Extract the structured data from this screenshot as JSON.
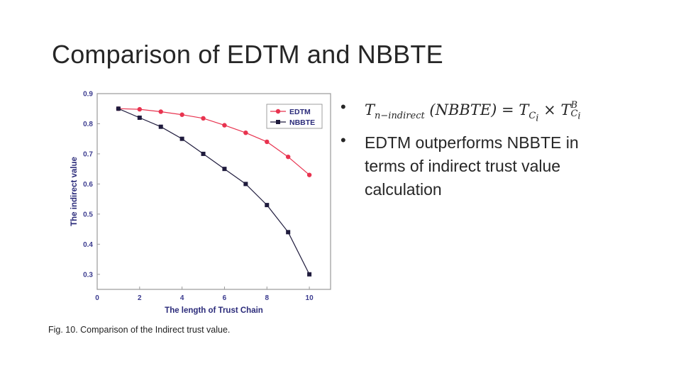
{
  "slide": {
    "title": "Comparison of EDTM and NBBTE",
    "caption": "Fig. 10. Comparison of the Indirect trust value."
  },
  "bullets": [
    {
      "type": "formula",
      "lhs_base": "T",
      "lhs_sub": "n−indirect",
      "lhs_arg": "(NBBTE) =",
      "rhs1_base": "T",
      "rhs1_sub": "C",
      "rhs1_subsub": "i",
      "times": "×",
      "rhs2_base": "T",
      "rhs2_sup": "B",
      "rhs2_sub": "C",
      "rhs2_subsub": "i"
    },
    {
      "type": "text",
      "text": "EDTM outperforms NBBTE in terms of indirect trust value calculation"
    }
  ],
  "chart_data": {
    "type": "line",
    "xlabel": "The length of Trust Chain",
    "ylabel": "The indirect value",
    "xlim": [
      0,
      11
    ],
    "ylim": [
      0.25,
      0.9
    ],
    "x_ticks": [
      0,
      2,
      4,
      6,
      8,
      10
    ],
    "y_ticks": [
      0.3,
      0.4,
      0.5,
      0.6,
      0.7,
      0.8,
      0.9
    ],
    "legend_position": "top-right",
    "series": [
      {
        "name": "EDTM",
        "color": "#e8334f",
        "marker": "circle",
        "x": [
          1,
          2,
          3,
          4,
          5,
          6,
          7,
          8,
          9,
          10
        ],
        "y": [
          0.85,
          0.848,
          0.84,
          0.83,
          0.818,
          0.795,
          0.77,
          0.74,
          0.69,
          0.63
        ]
      },
      {
        "name": "NBBTE",
        "color": "#1f1b3d",
        "marker": "square",
        "x": [
          1,
          2,
          3,
          4,
          5,
          6,
          7,
          8,
          9,
          10
        ],
        "y": [
          0.85,
          0.82,
          0.79,
          0.75,
          0.7,
          0.65,
          0.6,
          0.53,
          0.44,
          0.3
        ]
      }
    ]
  }
}
